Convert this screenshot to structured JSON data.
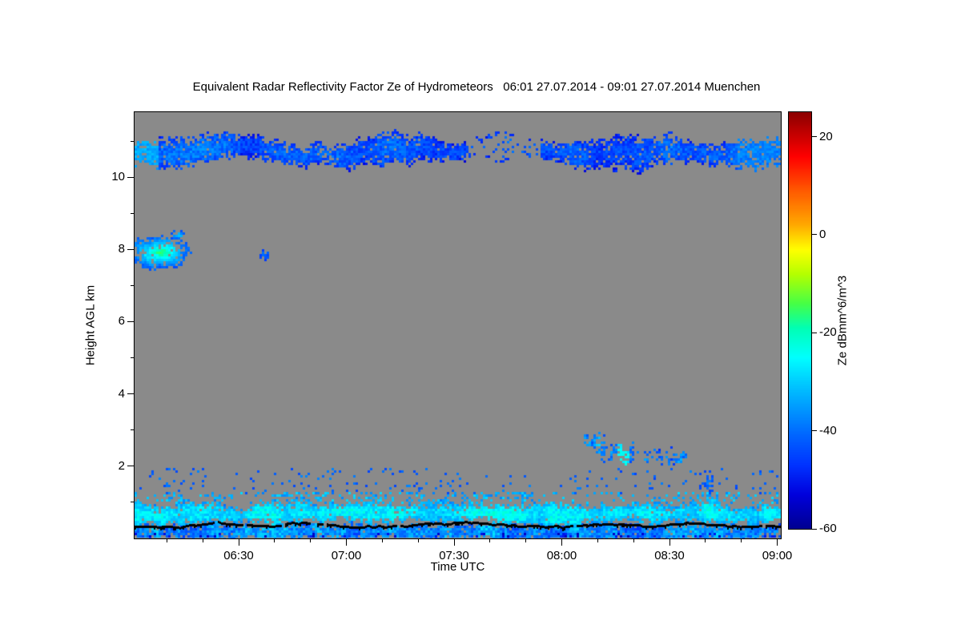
{
  "chart_data": {
    "type": "heatmap",
    "title": "Equivalent Radar Reflectivity Factor Ze of Hydrometeors   06:01 27.07.2014 - 09:01 27.07.2014 Muenchen",
    "xlabel": "Time UTC",
    "ylabel": "Height AGL km",
    "x_range_hours": [
      6.0167,
      9.0167
    ],
    "y_range_km": [
      0,
      11.8
    ],
    "x_ticks": [
      {
        "t": 6.5,
        "label": "06:30"
      },
      {
        "t": 7.0,
        "label": "07:00"
      },
      {
        "t": 7.5,
        "label": "07:30"
      },
      {
        "t": 8.0,
        "label": "08:00"
      },
      {
        "t": 8.5,
        "label": "08:30"
      },
      {
        "t": 9.0,
        "label": "09:00"
      }
    ],
    "x_minor_step_min": 10,
    "y_ticks": [
      {
        "v": 2,
        "label": "2"
      },
      {
        "v": 4,
        "label": "4"
      },
      {
        "v": 6,
        "label": "6"
      },
      {
        "v": 8,
        "label": "8"
      },
      {
        "v": 10,
        "label": "10"
      }
    ],
    "y_minor_step_km": 1,
    "no_signal_color": "#8a8a8a",
    "colorbar": {
      "label": "Ze dBmm^6/m^3",
      "range": [
        -60,
        25
      ],
      "ticks": [
        {
          "v": 20,
          "label": "20"
        },
        {
          "v": 0,
          "label": "0"
        },
        {
          "v": -20,
          "label": "-20"
        },
        {
          "v": -40,
          "label": "-40"
        },
        {
          "v": -60,
          "label": "-60"
        }
      ],
      "color_stops": [
        [
          -60,
          "#000090"
        ],
        [
          -53,
          "#0000dc"
        ],
        [
          -47,
          "#0032ff"
        ],
        [
          -41,
          "#0064ff"
        ],
        [
          -35,
          "#009cff"
        ],
        [
          -30,
          "#00ccff"
        ],
        [
          -25,
          "#00ffff"
        ],
        [
          -19,
          "#00ffb4"
        ],
        [
          -14,
          "#46ff46"
        ],
        [
          -8,
          "#b4ff00"
        ],
        [
          -3,
          "#ffff00"
        ],
        [
          2,
          "#ffaa00"
        ],
        [
          9,
          "#ff5a00"
        ],
        [
          16,
          "#ff0000"
        ],
        [
          25,
          "#8c0000"
        ]
      ]
    },
    "features": [
      {
        "id": "cirrus-layer",
        "type": "band",
        "t0": 6.0167,
        "t1": 9.0167,
        "center_km": 10.72,
        "center_wave_km": 0.16,
        "half_thick_km": 0.4,
        "half_wave_km": 0.15,
        "wave_freq": 4,
        "dbz_mean": -42,
        "dbz_wave": 4,
        "dbz_cell_jitter": 4,
        "density": 0.95,
        "edge_fade_db": 7,
        "seed": 11,
        "gaps": [
          {
            "t0": 7.56,
            "t1": 7.9,
            "f": 0.25
          },
          {
            "t0": 6.87,
            "t1": 6.93,
            "f": 0.7
          }
        ],
        "bright": [
          {
            "t0": 6.0167,
            "t1": 6.13,
            "dbz": -34
          },
          {
            "t0": 8.82,
            "t1": 9.0167,
            "dbz": -38
          }
        ]
      },
      {
        "id": "mid-level-cloud-blob",
        "type": "blob",
        "tc": 6.14,
        "hc": 7.92,
        "rt": 0.155,
        "rh": 0.5,
        "dbz_core": -14,
        "dbz_edge": -43,
        "density": 0.97,
        "seed": 23
      },
      {
        "id": "mid-level-cloud-puff",
        "type": "blob",
        "tc": 6.225,
        "hc": 8.4,
        "rt": 0.035,
        "rh": 0.14,
        "dbz_core": -30,
        "dbz_edge": -42,
        "density": 0.9,
        "seed": 27
      },
      {
        "id": "mid-level-speck",
        "type": "blob",
        "tc": 6.62,
        "hc": 7.85,
        "rt": 0.022,
        "rh": 0.12,
        "dbz_core": -38,
        "dbz_edge": -45,
        "density": 0.85,
        "seed": 29
      },
      {
        "id": "low-cloud-patches",
        "type": "band",
        "t0": 8.1,
        "t1": 8.58,
        "center_km": 2.45,
        "center_wave_km": 0.28,
        "half_thick_km": 0.26,
        "half_wave_km": 0.14,
        "wave_freq": 14,
        "dbz_mean": -37,
        "dbz_wave": 5,
        "dbz_cell_jitter": 5,
        "density": 0.55,
        "edge_fade_db": 5,
        "seed": 31,
        "gaps": [
          {
            "t0": 8.2,
            "t1": 8.23,
            "f": 0.25
          },
          {
            "t0": 8.34,
            "t1": 8.38,
            "f": 0.2
          }
        ],
        "bright": [
          {
            "t0": 8.26,
            "t1": 8.31,
            "dbz": -26
          }
        ]
      },
      {
        "id": "boundary-layer-core",
        "type": "band",
        "t0": 6.0167,
        "t1": 9.0167,
        "center_km": 0.68,
        "center_wave_km": 0.07,
        "half_thick_km": 0.3,
        "half_wave_km": 0.12,
        "wave_freq": 6,
        "dbz_mean": -27,
        "dbz_wave": 3,
        "dbz_cell_jitter": 4,
        "density": 0.98,
        "edge_fade_db": 9,
        "seed": 41
      },
      {
        "id": "boundary-layer-lower",
        "type": "band",
        "t0": 6.0167,
        "t1": 9.0167,
        "center_km": 0.2,
        "center_wave_km": 0.03,
        "half_thick_km": 0.24,
        "half_wave_km": 0.06,
        "wave_freq": 8,
        "dbz_mean": -37,
        "dbz_wave": 5,
        "dbz_cell_jitter": 6,
        "density": 0.93,
        "edge_fade_db": 3,
        "seed": 47
      },
      {
        "id": "boundary-layer-top-fuzz",
        "type": "scatter",
        "t0": 6.0167,
        "t1": 9.0167,
        "h0": 0.95,
        "h1": 1.3,
        "density": 0.22,
        "clump_freq": 10,
        "dbz_mean": -33,
        "dbz_cell_jitter": 5,
        "seed": 59
      },
      {
        "id": "aerosol-specks",
        "type": "scatter",
        "t0": 6.0167,
        "t1": 9.0167,
        "h0": 1.25,
        "h1": 1.95,
        "density": 0.05,
        "clump_freq": 7,
        "dbz_mean": -41,
        "dbz_cell_jitter": 4,
        "seed": 53
      },
      {
        "id": "speck-column",
        "type": "blob",
        "tc": 8.68,
        "hc": 1.55,
        "rt": 0.035,
        "rh": 0.38,
        "dbz_core": -38,
        "dbz_edge": -45,
        "density": 0.5,
        "seed": 67
      },
      {
        "id": "dark-bottom-specks",
        "type": "scatter",
        "t0": 6.0167,
        "t1": 9.0167,
        "h0": 0.02,
        "h1": 0.18,
        "density": 0.4,
        "clump_freq": 9,
        "dbz_mean": -53,
        "dbz_cell_jitter": 4,
        "seed": 71
      }
    ],
    "surface_line": {
      "h_mean_km": 0.4,
      "h_wave_km": 0.07,
      "wave_freq": 5,
      "thickness_px": 3,
      "break_prob": 0.05,
      "seed": 61,
      "color": "#000000"
    }
  }
}
